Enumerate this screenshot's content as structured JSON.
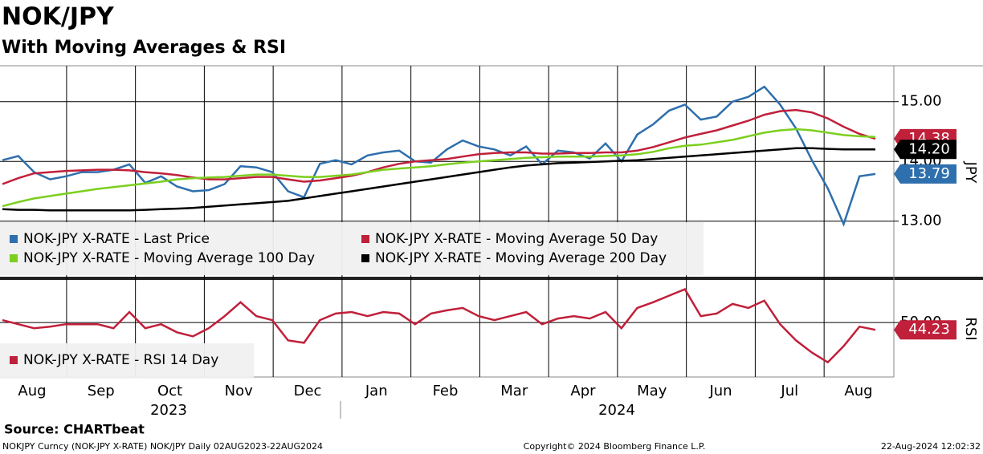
{
  "chart_data": [
    {
      "type": "line",
      "title": "NOK/JPY",
      "subtitle": "With Moving Averages & RSI",
      "y_label": "JPY",
      "ylim": [
        12.07,
        15.6
      ],
      "yticks": [
        {
          "value": 13,
          "label": "13.00"
        },
        {
          "value": 14,
          "label": "14.00"
        },
        {
          "value": 15,
          "label": "15.00"
        }
      ],
      "grid": true,
      "series": [
        {
          "name": "NOK-JPY X-RATE - Last Price",
          "color": "#2e6fad",
          "last_label": "13.79",
          "values": [
            14.02,
            14.09,
            13.82,
            13.7,
            13.75,
            13.82,
            13.82,
            13.86,
            13.95,
            13.64,
            13.75,
            13.58,
            13.5,
            13.52,
            13.62,
            13.92,
            13.9,
            13.82,
            13.5,
            13.4,
            13.96,
            14.02,
            13.95,
            14.1,
            14.15,
            14.18,
            14.0,
            13.98,
            14.2,
            14.35,
            14.25,
            14.2,
            14.1,
            14.25,
            13.95,
            14.18,
            14.15,
            14.05,
            14.3,
            14.0,
            14.45,
            14.62,
            14.85,
            14.95,
            14.7,
            14.75,
            15.0,
            15.08,
            15.25,
            14.95,
            14.55,
            14.02,
            13.55,
            12.95,
            13.75,
            13.79
          ]
        },
        {
          "name": "NOK-JPY X-RATE - Moving Average 50 Day",
          "color": "#c0203a",
          "last_label": "14.38",
          "values": [
            13.62,
            13.72,
            13.8,
            13.82,
            13.84,
            13.85,
            13.86,
            13.86,
            13.85,
            13.82,
            13.8,
            13.77,
            13.73,
            13.7,
            13.7,
            13.72,
            13.74,
            13.74,
            13.7,
            13.66,
            13.68,
            13.72,
            13.76,
            13.82,
            13.9,
            13.96,
            14.0,
            14.02,
            14.04,
            14.08,
            14.12,
            14.14,
            14.15,
            14.15,
            14.13,
            14.13,
            14.14,
            14.14,
            14.15,
            14.15,
            14.18,
            14.24,
            14.32,
            14.4,
            14.46,
            14.52,
            14.6,
            14.68,
            14.78,
            14.84,
            14.86,
            14.82,
            14.72,
            14.58,
            14.46,
            14.38
          ]
        },
        {
          "name": "NOK-JPY X-RATE - Moving Average 100 Day",
          "color": "#7ccf1e",
          "values": [
            13.25,
            13.32,
            13.38,
            13.42,
            13.46,
            13.5,
            13.54,
            13.57,
            13.6,
            13.63,
            13.66,
            13.7,
            13.72,
            13.73,
            13.74,
            13.76,
            13.78,
            13.78,
            13.76,
            13.74,
            13.74,
            13.76,
            13.78,
            13.82,
            13.86,
            13.88,
            13.9,
            13.92,
            13.95,
            13.98,
            14.0,
            14.02,
            14.04,
            14.06,
            14.07,
            14.08,
            14.08,
            14.08,
            14.09,
            14.1,
            14.12,
            14.16,
            14.22,
            14.26,
            14.28,
            14.32,
            14.36,
            14.42,
            14.48,
            14.52,
            14.54,
            14.52,
            14.48,
            14.44,
            14.42,
            14.41
          ]
        },
        {
          "name": "NOK-JPY X-RATE - Moving Average 200 Day",
          "color": "#000000",
          "last_label": "14.20",
          "values": [
            13.2,
            13.19,
            13.19,
            13.18,
            13.18,
            13.18,
            13.18,
            13.18,
            13.18,
            13.19,
            13.2,
            13.21,
            13.22,
            13.24,
            13.26,
            13.28,
            13.3,
            13.32,
            13.34,
            13.38,
            13.42,
            13.46,
            13.5,
            13.54,
            13.58,
            13.62,
            13.66,
            13.7,
            13.74,
            13.78,
            13.82,
            13.86,
            13.9,
            13.93,
            13.95,
            13.97,
            13.98,
            13.99,
            14.0,
            14.01,
            14.02,
            14.04,
            14.06,
            14.08,
            14.1,
            14.12,
            14.14,
            14.16,
            14.18,
            14.2,
            14.22,
            14.22,
            14.21,
            14.2,
            14.2,
            14.2
          ]
        }
      ]
    },
    {
      "type": "line",
      "y_label": "RSI",
      "ylim": [
        7,
        83
      ],
      "yticks": [
        {
          "value": 50,
          "label": "50.00"
        }
      ],
      "grid": true,
      "xlabels": [
        "Aug",
        "Sep",
        "Oct",
        "Nov",
        "Dec",
        "Jan",
        "Feb",
        "Mar",
        "Apr",
        "May",
        "Jun",
        "Jul",
        "Aug"
      ],
      "xyears": [
        "2023",
        "2024"
      ],
      "series": [
        {
          "name": "NOK-JPY X-RATE - RSI 14 Day",
          "color": "#c0203a",
          "last_label": "44.23",
          "values": [
            51.9,
            48.7,
            45.5,
            46.8,
            48.7,
            48.7,
            48.7,
            45.5,
            58.3,
            45.5,
            48.7,
            42.3,
            39.1,
            45.5,
            55.1,
            66.0,
            55.1,
            51.9,
            35.9,
            34.0,
            51.9,
            57.1,
            58.3,
            55.1,
            58.3,
            57.1,
            48.7,
            57.1,
            59.6,
            61.5,
            55.1,
            51.9,
            55.1,
            58.3,
            48.7,
            53.2,
            55.1,
            53.2,
            58.3,
            45.5,
            61.5,
            66.0,
            71.2,
            76.3,
            55.1,
            57.1,
            64.7,
            61.5,
            67.3,
            48.7,
            35.9,
            26.3,
            18.6,
            31.4,
            46.8,
            44.23
          ]
        }
      ]
    }
  ],
  "source": "Source: CHARTbeat",
  "footer": {
    "left": "NOKJPY Curncy (NOK-JPY X-RATE) NOK/JPY  Daily 02AUG2023-22AUG2024",
    "center": "Copyright© 2024 Bloomberg Finance L.P.",
    "right": "22-Aug-2024 12:02:32"
  }
}
